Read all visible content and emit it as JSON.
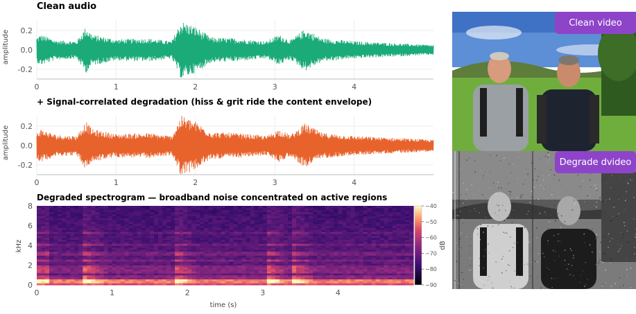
{
  "colors": {
    "clean": "#1aab78",
    "degraded": "#e8632c",
    "badge": "#8e44c9"
  },
  "video": {
    "clean_label": "Clean video",
    "degraded_label": "Degrade dvideo"
  },
  "chart_data": [
    {
      "type": "line",
      "title": "Clean audio",
      "xlabel": "",
      "ylabel": "amplitude",
      "xlim": [
        0,
        5
      ],
      "ylim": [
        -0.3,
        0.3
      ],
      "xticks": [
        0,
        1,
        2,
        3,
        4
      ],
      "yticks": [
        -0.2,
        0.0,
        0.2
      ],
      "grid": true,
      "series": [
        {
          "envelope": [
            {
              "t": 0.0,
              "a": 0.13
            },
            {
              "t": 0.05,
              "a": 0.16
            },
            {
              "t": 0.25,
              "a": 0.1
            },
            {
              "t": 0.5,
              "a": 0.09
            },
            {
              "t": 0.62,
              "a": 0.24
            },
            {
              "t": 0.7,
              "a": 0.16
            },
            {
              "t": 1.0,
              "a": 0.11
            },
            {
              "t": 1.4,
              "a": 0.12
            },
            {
              "t": 1.7,
              "a": 0.09
            },
            {
              "t": 1.82,
              "a": 0.3
            },
            {
              "t": 2.0,
              "a": 0.24
            },
            {
              "t": 2.2,
              "a": 0.13
            },
            {
              "t": 2.5,
              "a": 0.12
            },
            {
              "t": 2.9,
              "a": 0.09
            },
            {
              "t": 3.05,
              "a": 0.16
            },
            {
              "t": 3.2,
              "a": 0.1
            },
            {
              "t": 3.38,
              "a": 0.22
            },
            {
              "t": 3.6,
              "a": 0.12
            },
            {
              "t": 4.0,
              "a": 0.09
            },
            {
              "t": 4.5,
              "a": 0.07
            },
            {
              "t": 5.0,
              "a": 0.05
            }
          ]
        }
      ]
    },
    {
      "type": "line",
      "title": "+ Signal-correlated degradation (hiss & grit ride the content envelope)",
      "xlabel": "",
      "ylabel": "amplitude",
      "xlim": [
        0,
        5
      ],
      "ylim": [
        -0.3,
        0.3
      ],
      "xticks": [
        0,
        1,
        2,
        3,
        4
      ],
      "yticks": [
        -0.2,
        0.0,
        0.2
      ],
      "grid": true,
      "series": [
        {
          "envelope": [
            {
              "t": 0.0,
              "a": 0.14
            },
            {
              "t": 0.05,
              "a": 0.17
            },
            {
              "t": 0.25,
              "a": 0.11
            },
            {
              "t": 0.5,
              "a": 0.1
            },
            {
              "t": 0.62,
              "a": 0.25
            },
            {
              "t": 0.7,
              "a": 0.17
            },
            {
              "t": 1.0,
              "a": 0.12
            },
            {
              "t": 1.4,
              "a": 0.13
            },
            {
              "t": 1.7,
              "a": 0.1
            },
            {
              "t": 1.82,
              "a": 0.31
            },
            {
              "t": 2.0,
              "a": 0.25
            },
            {
              "t": 2.2,
              "a": 0.14
            },
            {
              "t": 2.5,
              "a": 0.13
            },
            {
              "t": 2.9,
              "a": 0.1
            },
            {
              "t": 3.05,
              "a": 0.17
            },
            {
              "t": 3.2,
              "a": 0.11
            },
            {
              "t": 3.38,
              "a": 0.23
            },
            {
              "t": 3.6,
              "a": 0.13
            },
            {
              "t": 4.0,
              "a": 0.1
            },
            {
              "t": 4.5,
              "a": 0.08
            },
            {
              "t": 5.0,
              "a": 0.06
            }
          ]
        }
      ]
    },
    {
      "type": "heatmap",
      "title": "Degraded spectrogram — broadband noise concentrated on active regions",
      "xlabel": "time (s)",
      "ylabel": "kHz",
      "colorbar_label": "dB",
      "xlim": [
        0,
        5
      ],
      "ylim": [
        0,
        8
      ],
      "xticks": [
        0,
        1,
        2,
        3,
        4
      ],
      "yticks": [
        0,
        2,
        4,
        6,
        8
      ],
      "colorbar_ticks": [
        -40,
        -50,
        -60,
        -70,
        -80,
        -90
      ],
      "colorbar_range": [
        -90,
        -40
      ],
      "onsets_s": [
        0.62,
        1.82,
        3.05,
        3.38
      ],
      "harmonics_khz": [
        0.3,
        0.5,
        0.8,
        1.4,
        1.8,
        2.5,
        3.2,
        4.1,
        5.3
      ]
    }
  ]
}
